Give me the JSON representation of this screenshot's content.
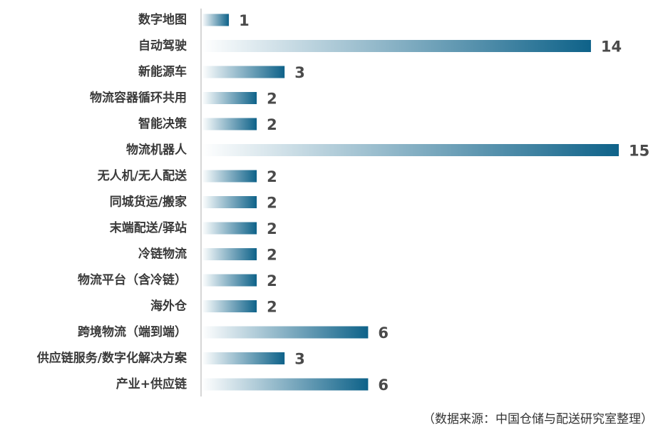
{
  "chart_data": {
    "type": "bar",
    "orientation": "horizontal",
    "categories": [
      "数字地图",
      "自动驾驶",
      "新能源车",
      "物流容器循环共用",
      "智能决策",
      "物流机器人",
      "无人机/无人配送",
      "同城货运/搬家",
      "末端配送/驿站",
      "冷链物流",
      "物流平台（含冷链）",
      "海外仓",
      "跨境物流（端到端）",
      "供应链服务/数字化解决方案",
      "产业+供应链"
    ],
    "values": [
      1,
      14,
      3,
      2,
      2,
      15,
      2,
      2,
      2,
      2,
      2,
      2,
      6,
      3,
      6
    ],
    "xlim": [
      0,
      15
    ],
    "grid": false,
    "legend": "none",
    "bar_gradient": [
      "#ffffff",
      "#0e6289"
    ]
  },
  "source_note": "（数据来源：中国仓储与配送研究室整理）",
  "colors": {
    "axis_line": "#c8c8c8",
    "label_text": "#3a3a3a",
    "value_text": "#4a4a4a"
  }
}
